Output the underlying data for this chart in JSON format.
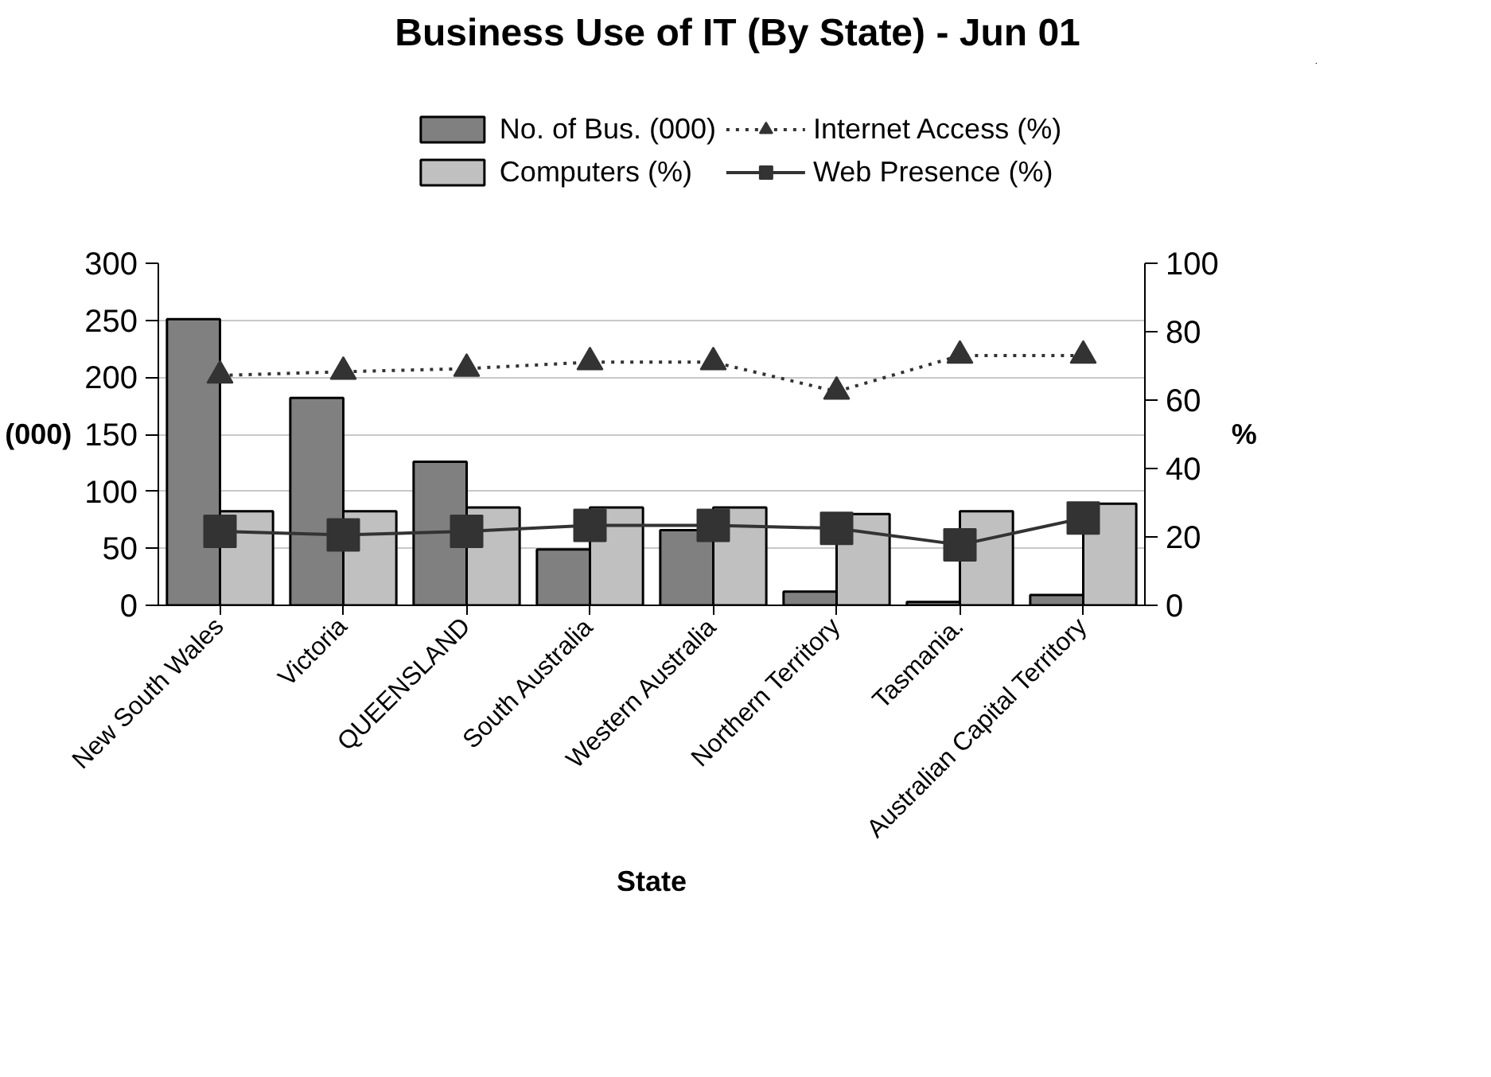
{
  "chart_data": {
    "type": "bar",
    "title": "Business Use of IT (By State) - Jun 01",
    "xlabel": "State",
    "ylabel": "(000)",
    "y2label": "%",
    "categories": [
      "New South Wales",
      "Victoria",
      "QUEENSLAND",
      "South Australia",
      "Western Australia",
      "Northern Territory",
      "Tasmania.",
      "Australian Capital Territory"
    ],
    "series": [
      {
        "name": "No. of Bus. (000)",
        "color": "#808080",
        "values": [
          251,
          182,
          126,
          49,
          66,
          12,
          3,
          9
        ]
      },
      {
        "name": "Computers (%)",
        "color": "#c0c0c0",
        "axis": "y2",
        "values": [
          27.5,
          27.5,
          28.6,
          28.6,
          28.6,
          26.7,
          27.5,
          29.7
        ]
      },
      {
        "name": "Internet Access (%)",
        "type": "line",
        "color": "#333333",
        "axis": "y2",
        "marker": "triangle",
        "line_style": "dotted",
        "values": [
          67.2,
          68.3,
          69.2,
          71.1,
          71.1,
          62.5,
          73,
          73
        ]
      },
      {
        "name": "Web Presence (%)",
        "type": "line",
        "color": "#333333",
        "axis": "y2",
        "marker": "square",
        "line_style": "solid",
        "values": [
          21.6,
          20.6,
          21.6,
          23.4,
          23.4,
          22.5,
          17.7,
          25.5
        ]
      }
    ],
    "ylim": [
      0,
      300
    ],
    "yticks": [
      0,
      50,
      100,
      150,
      200,
      250,
      300
    ],
    "y2lim": [
      0,
      100
    ],
    "y2ticks": [
      0,
      20,
      40,
      60,
      80,
      100
    ],
    "grid": "y",
    "legend": "top"
  }
}
